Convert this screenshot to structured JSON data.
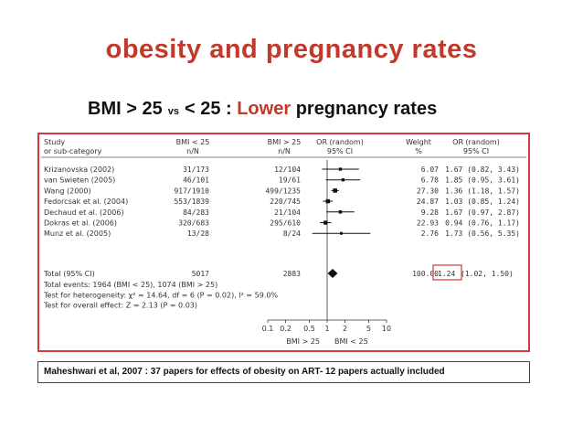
{
  "colors": {
    "title": "#c0392b",
    "accent": "#d23a3a",
    "text": "#333333",
    "highlight": "#d23a3a"
  },
  "slide": {
    "title": "obesity and pregnancy rates",
    "subtitle": {
      "part1": "BMI  > 25",
      "vs": "vs",
      "part2": "< 25 :",
      "lower": "Lower",
      "rest": "pregnancy rates"
    },
    "caption": "Maheshwari et al, 2007 : 37 papers for effects of obesity on ART- 12 papers actually included"
  },
  "chart_data": {
    "type": "forest",
    "headers": {
      "study": [
        "Study",
        "or sub-category"
      ],
      "bmi_lt25": [
        "BMI < 25",
        "n/N"
      ],
      "bmi_gt25": [
        "BMI > 25",
        "n/N"
      ],
      "or_random": [
        "OR (random)",
        "95% CI"
      ],
      "weight": [
        "Weight",
        "%"
      ],
      "or_ci": [
        "OR (random)",
        "95% CI"
      ]
    },
    "studies": [
      {
        "name": "Krizanovska (2002)",
        "bmi_lt25": "31/173",
        "bmi_gt25": "12/104",
        "weight": "6.07",
        "or": 1.67,
        "lo": 0.82,
        "hi": 3.43,
        "ci_text": "1.67 (0.82, 3.43)"
      },
      {
        "name": "van Swieten (2005)",
        "bmi_lt25": "46/101",
        "bmi_gt25": "19/61",
        "weight": "6.78",
        "or": 1.85,
        "lo": 0.95,
        "hi": 3.61,
        "ci_text": "1.85 (0.95, 3.61)"
      },
      {
        "name": "Wang (2000)",
        "bmi_lt25": "917/1910",
        "bmi_gt25": "499/1235",
        "weight": "27.30",
        "or": 1.36,
        "lo": 1.18,
        "hi": 1.57,
        "ci_text": "1.36 (1.18, 1.57)"
      },
      {
        "name": "Fedorcsak et al. (2004)",
        "bmi_lt25": "553/1839",
        "bmi_gt25": "220/745",
        "weight": "24.87",
        "or": 1.03,
        "lo": 0.85,
        "hi": 1.24,
        "ci_text": "1.03 (0.85, 1.24)"
      },
      {
        "name": "Dechaud et al. (2006)",
        "bmi_lt25": "84/283",
        "bmi_gt25": "21/104",
        "weight": "9.28",
        "or": 1.67,
        "lo": 0.97,
        "hi": 2.87,
        "ci_text": "1.67 (0.97, 2.87)"
      },
      {
        "name": "Dokras et al. (2006)",
        "bmi_lt25": "320/683",
        "bmi_gt25": "295/610",
        "weight": "22.93",
        "or": 0.94,
        "lo": 0.76,
        "hi": 1.17,
        "ci_text": "0.94 (0.76, 1.17)"
      },
      {
        "name": "Munz et al. (2005)",
        "bmi_lt25": "13/28",
        "bmi_gt25": "8/24",
        "weight": "2.76",
        "or": 1.73,
        "lo": 0.56,
        "hi": 5.35,
        "ci_text": "1.73 (0.56, 5.35)"
      }
    ],
    "total": {
      "name": "Total (95% CI)",
      "bmi_lt25": "5017",
      "bmi_gt25": "2883",
      "weight": "100.00",
      "or": 1.24,
      "lo": 1.02,
      "hi": 1.5,
      "or_text": "1.24",
      "ci_text": "(1.02, 1.50)"
    },
    "notes": [
      "Total events: 1964 (BMI < 25), 1074 (BMI > 25)",
      "Test for heterogeneity: χ² = 14.64, df = 6 (P = 0.02), I² = 59.0%",
      "Test for overall effect: Z = 2.13 (P = 0.03)"
    ],
    "x_scale": "log",
    "xlim": [
      0.1,
      10
    ],
    "ticks": [
      0.1,
      0.2,
      0.5,
      1,
      2,
      5,
      10
    ],
    "tick_labels": [
      "0.1",
      "0.2",
      "0.5",
      "1",
      "2",
      "5",
      "10"
    ],
    "xlabel_left": "BMI > 25",
    "xlabel_right": "BMI < 25"
  }
}
